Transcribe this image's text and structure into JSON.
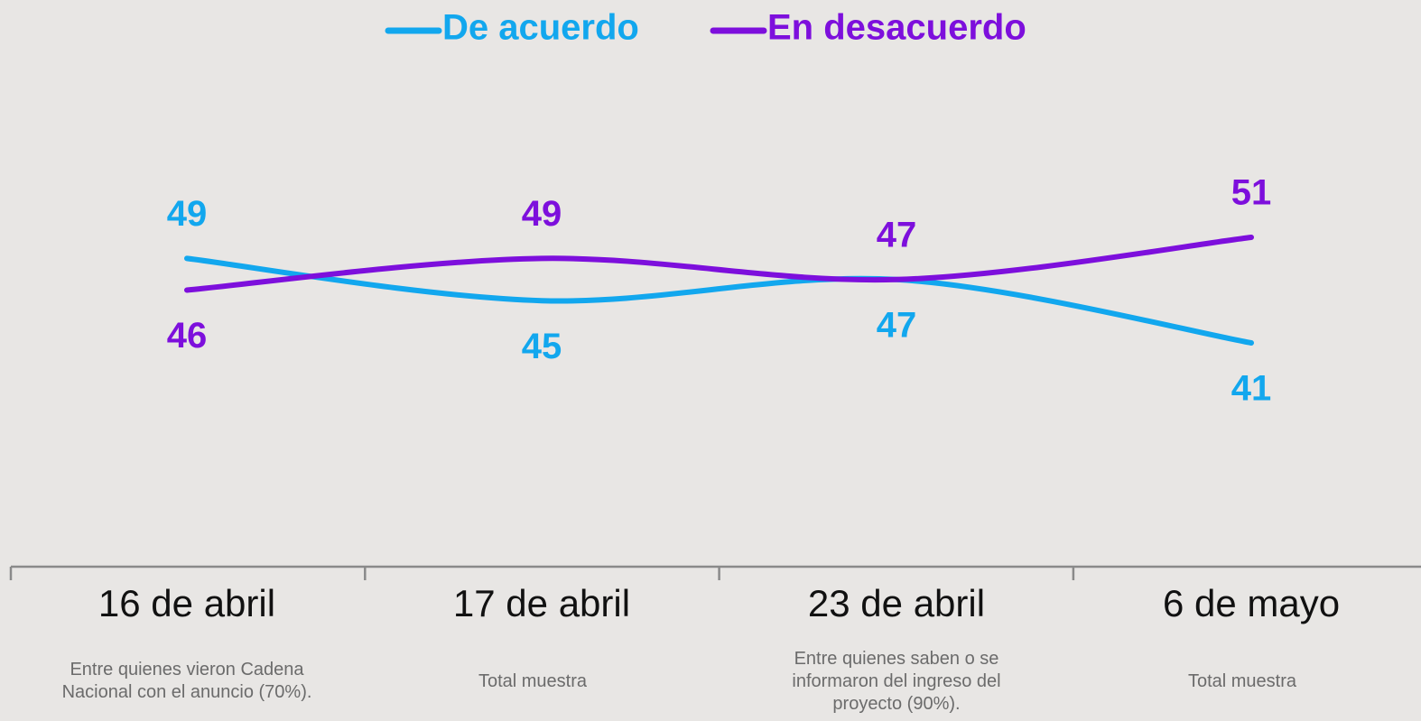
{
  "chart_data": {
    "type": "line",
    "categories": [
      "16 de abril",
      "17 de abril",
      "23 de abril",
      "6 de mayo"
    ],
    "notes": [
      "Entre quienes vieron Cadena Nacional con el anuncio (70%).",
      "Total muestra",
      "Entre quienes saben o se informaron del ingreso del proyecto (90%).",
      "Total muestra"
    ],
    "series": [
      {
        "name": "De acuerdo",
        "color": "#12a7ee",
        "values": [
          49,
          45,
          47,
          41
        ]
      },
      {
        "name": "En desacuerdo",
        "color": "#7d0fdc",
        "values": [
          46,
          49,
          47,
          51
        ]
      }
    ],
    "legend": "top"
  }
}
